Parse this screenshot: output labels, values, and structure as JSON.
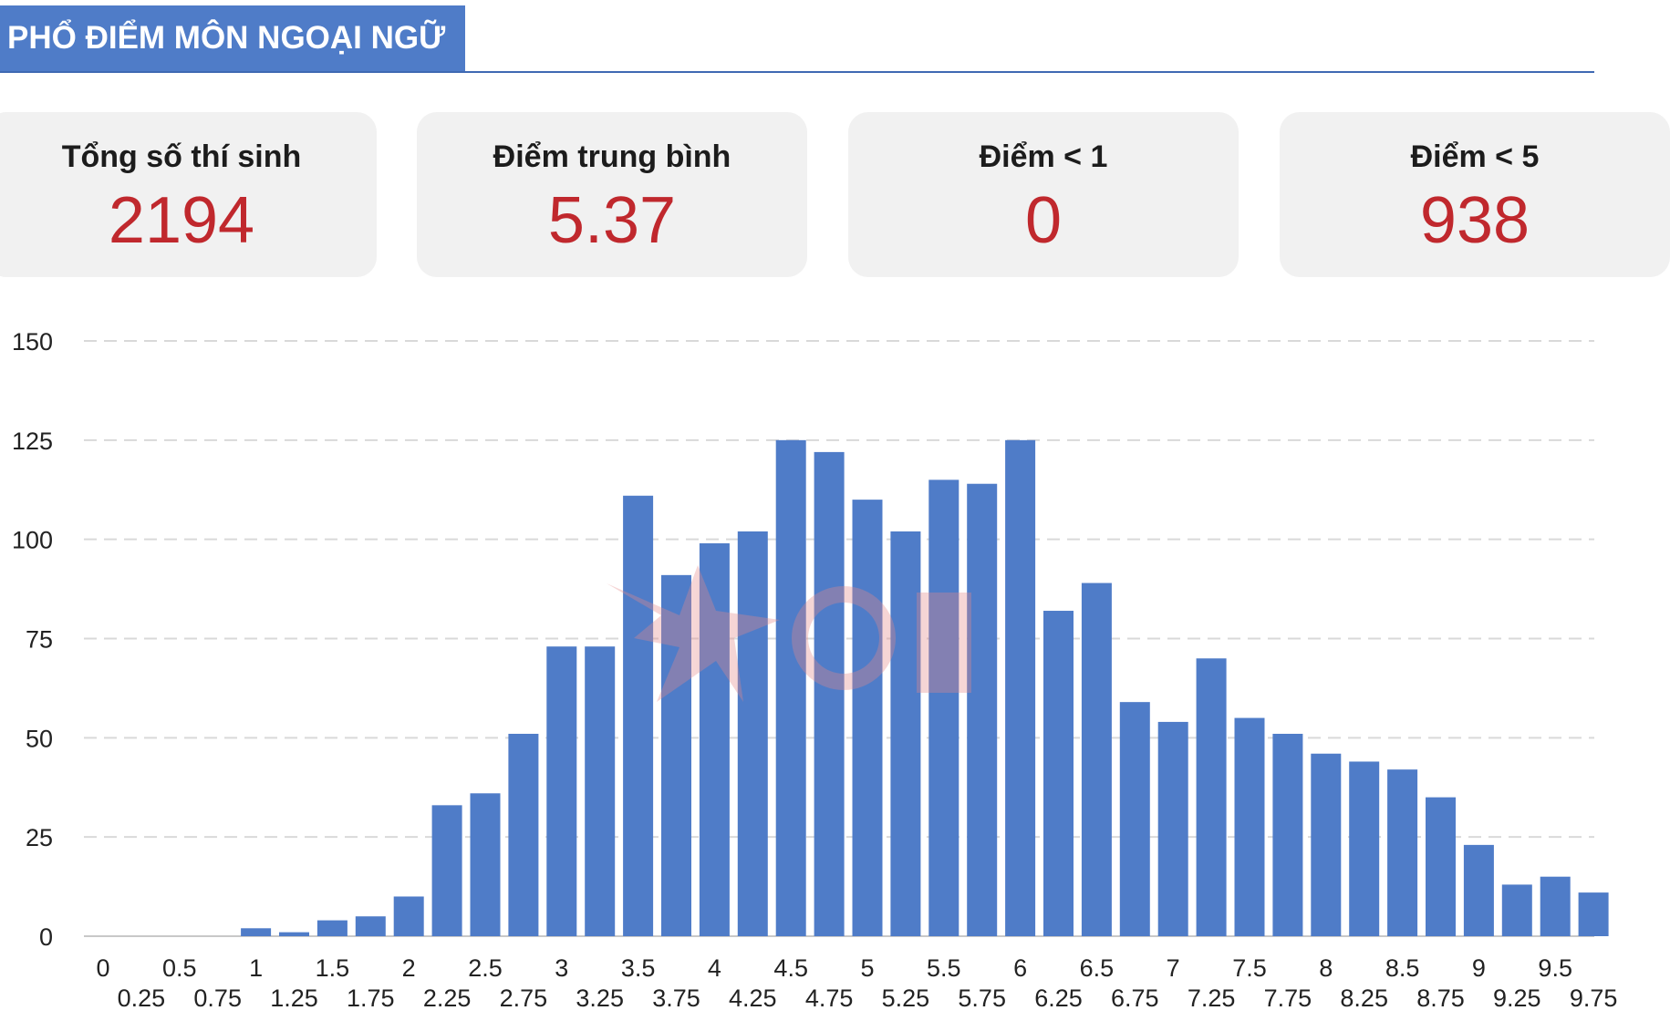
{
  "header": {
    "title": "PHỔ ĐIỂM MÔN NGOẠI NGỮ"
  },
  "stats": [
    {
      "label": "Tổng số thí sinh",
      "value": "2194"
    },
    {
      "label": "Điểm trung bình",
      "value": "5.37"
    },
    {
      "label": "Điểm < 1",
      "value": "0"
    },
    {
      "label": "Điểm < 5",
      "value": "938"
    }
  ],
  "colors": {
    "bar": "#4f7cc8",
    "accent": "#c0282d",
    "header": "#4f7cc8"
  },
  "chart_data": {
    "type": "bar",
    "categories": [
      "0",
      "0.25",
      "0.5",
      "0.75",
      "1",
      "1.25",
      "1.5",
      "1.75",
      "2",
      "2.25",
      "2.5",
      "2.75",
      "3",
      "3.25",
      "3.5",
      "3.75",
      "4",
      "4.25",
      "4.5",
      "4.75",
      "5",
      "5.25",
      "5.5",
      "5.75",
      "6",
      "6.25",
      "6.5",
      "6.75",
      "7",
      "7.25",
      "7.5",
      "7.75",
      "8",
      "8.25",
      "8.5",
      "8.75",
      "9",
      "9.25",
      "9.5",
      "9.75"
    ],
    "values": [
      0,
      0,
      0,
      0,
      2,
      1,
      4,
      5,
      10,
      33,
      36,
      51,
      73,
      73,
      111,
      91,
      99,
      102,
      125,
      122,
      110,
      102,
      115,
      114,
      125,
      82,
      89,
      59,
      54,
      70,
      55,
      51,
      46,
      44,
      42,
      35,
      23,
      13,
      15,
      11
    ],
    "yticks": [
      0,
      25,
      50,
      75,
      100,
      125,
      150
    ],
    "ylim": [
      0,
      150
    ],
    "grid": true,
    "xlabel": "",
    "ylabel": ""
  }
}
